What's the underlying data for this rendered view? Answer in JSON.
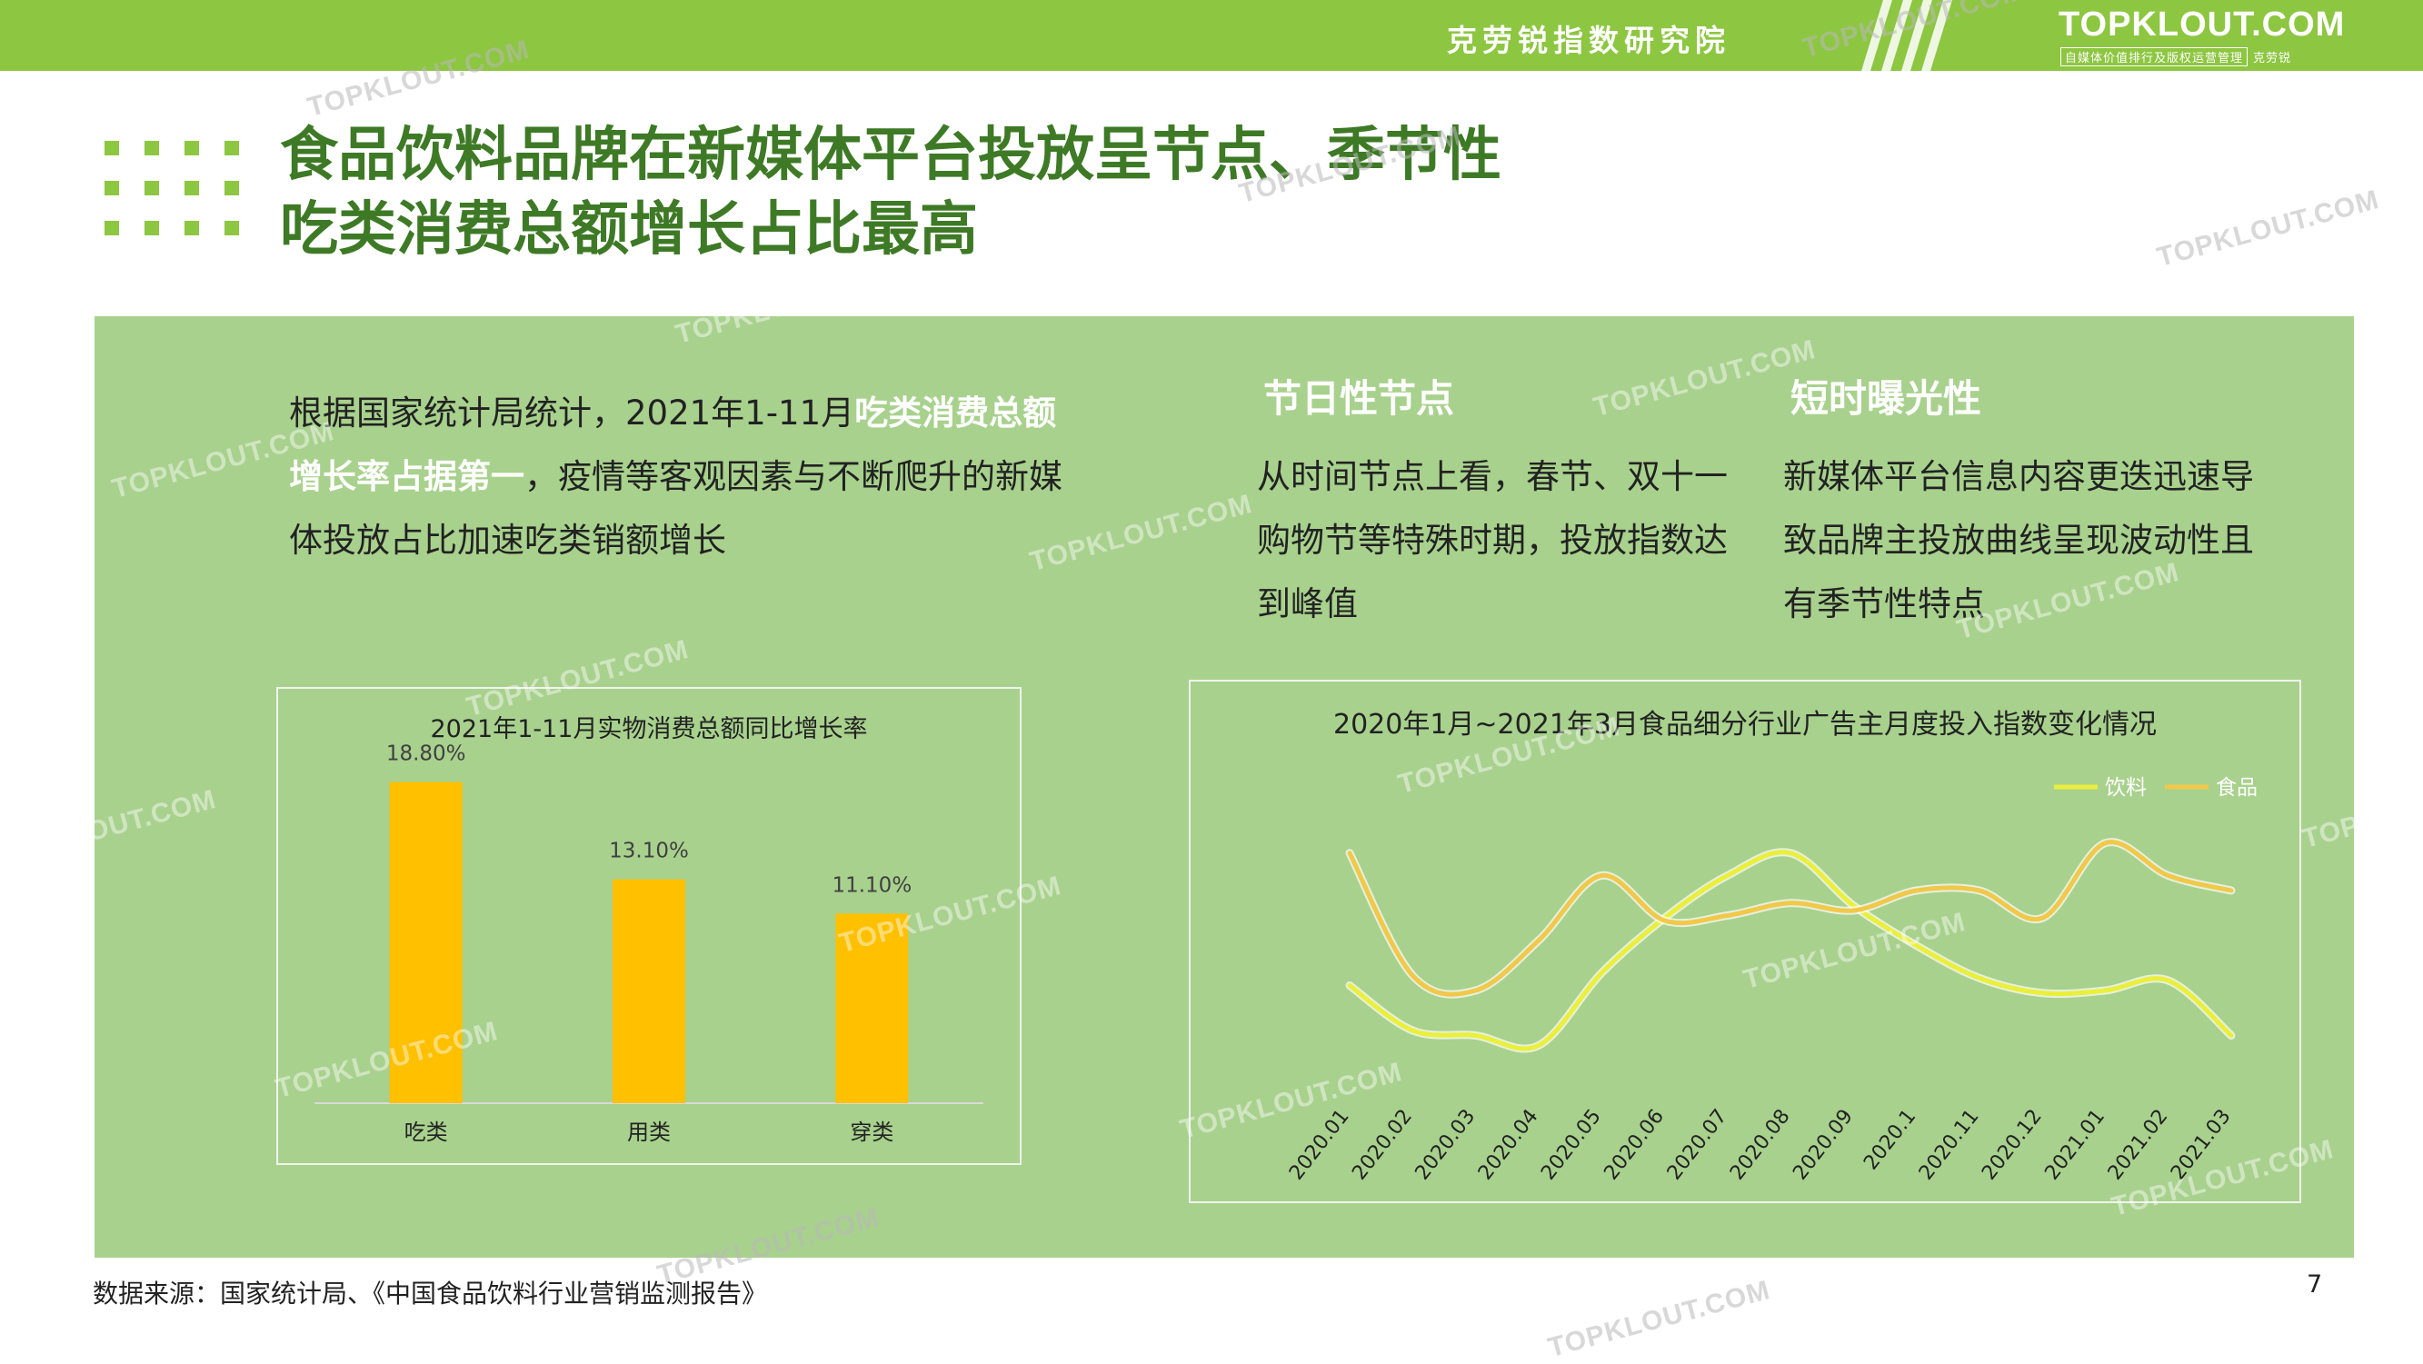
{
  "header": {
    "institute": "克劳锐指数研究院",
    "logo_text": "TOPKLOUT.COM",
    "logo_tagline": "自媒体价值排行及版权运营管理",
    "logo_tagline_brand": "克劳锐"
  },
  "title": {
    "line1": "食品饮料品牌在新媒体平台投放呈节点、季节性",
    "line2": "吃类消费总额增长占比最高"
  },
  "intro": {
    "part1": "根据国家统计局统计，2021年1-11月",
    "highlight": "吃类消费总额增长率占据第一",
    "part2": "，疫情等客观因素与不断爬升的新媒体投放占比加速吃类销额增长"
  },
  "columns": [
    {
      "heading": "节日性节点",
      "text": "从时间节点上看，春节、双十一购物节等特殊时期，投放指数达到峰值"
    },
    {
      "heading": "短时曝光性",
      "text": "新媒体平台信息内容更迭迅速导致品牌主投放曲线呈现波动性且有季节性特点"
    }
  ],
  "bar_chart": {
    "title": "2021年1-11月实物消费总额同比增长率"
  },
  "line_chart": {
    "title": "2020年1月~2021年3月食品细分行业广告主月度投入指数变化情况"
  },
  "chart_data": [
    {
      "type": "bar",
      "title": "2021年1-11月实物消费总额同比增长率",
      "categories": [
        "吃类",
        "用类",
        "穿类"
      ],
      "values": [
        18.8,
        13.1,
        11.1
      ],
      "value_labels": [
        "18.80%",
        "13.10%",
        "11.10%"
      ],
      "unit": "%",
      "ylim": [
        0,
        20
      ],
      "grid": false,
      "legend": "none",
      "color": "#ffc000"
    },
    {
      "type": "line",
      "title": "2020年1月~2021年3月食品细分行业广告主月度投入指数变化情况",
      "categories": [
        "2020.01",
        "2020.02",
        "2020.03",
        "2020.04",
        "2020.05",
        "2020.06",
        "2020.07",
        "2020.08",
        "2020.09",
        "2020.1",
        "2020.11",
        "2020.12",
        "2021.01",
        "2021.02",
        "2021.03"
      ],
      "series": [
        {
          "name": "饮料",
          "values": [
            42,
            24,
            22,
            18,
            47,
            69,
            86,
            95,
            74,
            58,
            45,
            39,
            40,
            44,
            22
          ],
          "color": "#ebef3b"
        },
        {
          "name": "食品",
          "values": [
            95,
            46,
            40,
            60,
            86,
            68,
            70,
            75,
            72,
            80,
            80,
            69,
            99,
            86,
            80
          ],
          "color": "#f1c84a"
        }
      ],
      "ylim": [
        0,
        120
      ],
      "grid": false,
      "legend": "top-right"
    }
  ],
  "footer": {
    "source": "数据来源：国家统计局、《中国食品饮料行业营销监测报告》",
    "page_number": "7"
  },
  "watermark": "TOPKLOUT.COM"
}
